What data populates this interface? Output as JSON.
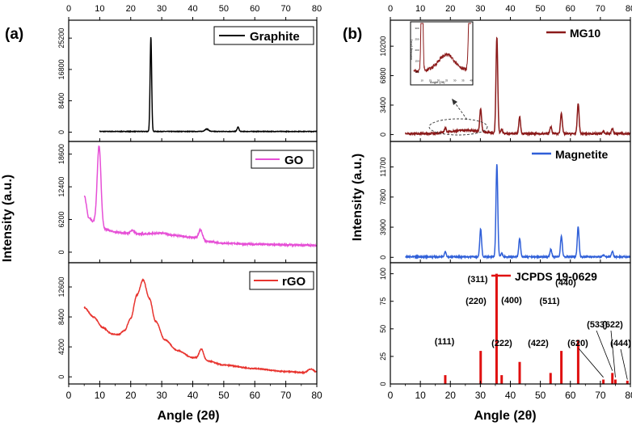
{
  "colors": {
    "graphite": "#000000",
    "go": "#e64fd6",
    "rgo": "#e8342f",
    "mg10": "#8b1a1a",
    "magnetite": "#2f5fd8",
    "jcpds": "#e01010",
    "frame": "#000000",
    "inset_bg": "#ffffff"
  },
  "chart_data": [
    {
      "panel": "a",
      "panel_label": "(a)",
      "type": "line",
      "xlabel": "Angle (2θ)",
      "ylabel": "Intensity (a.u.)",
      "xlim": [
        0,
        80
      ],
      "xticks": [
        "0",
        "10",
        "20",
        "30",
        "40",
        "50",
        "60",
        "70",
        "80"
      ],
      "subplots": [
        {
          "name": "Graphite",
          "legend": "Graphite",
          "color_key": "graphite",
          "ylim": [
            -2500,
            30000
          ],
          "yticks": [
            0,
            8400,
            16800,
            25200
          ],
          "ytick_labels": [
            "0",
            "8400",
            "16800",
            "25200"
          ],
          "x_start": 10,
          "baseline": 180,
          "noise": 70,
          "peaks": [
            {
              "x": 26.5,
              "h": 25300,
              "w": 0.25
            },
            {
              "x": 44.5,
              "h": 650,
              "w": 0.6
            },
            {
              "x": 54.6,
              "h": 1150,
              "w": 0.3
            }
          ]
        },
        {
          "name": "GO",
          "legend": "GO",
          "color_key": "go",
          "ylim": [
            -2000,
            21000
          ],
          "yticks": [
            0,
            6200,
            12400,
            18600
          ],
          "ytick_labels": [
            "0",
            "6200",
            "12400",
            "18600"
          ],
          "x_start": 5,
          "profile": [
            [
              5,
              10800
            ],
            [
              6.5,
              6500
            ],
            [
              8,
              5800
            ],
            [
              12,
              4300
            ],
            [
              15,
              3800
            ],
            [
              20,
              3500
            ],
            [
              25,
              3400
            ],
            [
              30,
              3300
            ],
            [
              35,
              3100
            ],
            [
              40,
              2800
            ],
            [
              42,
              2600
            ],
            [
              45,
              2000
            ],
            [
              50,
              1700
            ],
            [
              60,
              1500
            ],
            [
              70,
              1400
            ],
            [
              80,
              1300
            ]
          ],
          "noise": 130,
          "peaks": [
            {
              "x": 9.8,
              "h": 15000,
              "w": 0.6
            },
            {
              "x": 20.5,
              "h": 600,
              "w": 0.7
            },
            {
              "x": 42.5,
              "h": 1700,
              "w": 0.6
            },
            {
              "x": 29.5,
              "h": 300,
              "w": 2.5
            }
          ]
        },
        {
          "name": "rGO",
          "legend": "rGO",
          "color_key": "rgo",
          "ylim": [
            -1000,
            16000
          ],
          "yticks": [
            0,
            4200,
            8400,
            12600
          ],
          "ytick_labels": [
            "0",
            "4200",
            "8400",
            "12600"
          ],
          "x_start": 5,
          "profile": [
            [
              5,
              9700
            ],
            [
              8,
              8400
            ],
            [
              11,
              6900
            ],
            [
              14,
              6000
            ],
            [
              16,
              5900
            ],
            [
              18,
              6500
            ],
            [
              20,
              8200
            ],
            [
              22,
              11500
            ],
            [
              24,
              13600
            ],
            [
              26,
              11000
            ],
            [
              28,
              7800
            ],
            [
              31,
              5200
            ],
            [
              35,
              3700
            ],
            [
              40,
              2700
            ],
            [
              45,
              2200
            ],
            [
              50,
              1650
            ],
            [
              60,
              1150
            ],
            [
              70,
              750
            ],
            [
              76,
              600
            ],
            [
              78,
              1100
            ],
            [
              80,
              700
            ]
          ],
          "noise": 60,
          "peaks": [
            {
              "x": 42.8,
              "h": 1500,
              "w": 0.7
            }
          ]
        }
      ]
    },
    {
      "panel": "b",
      "panel_label": "(b)",
      "type": "line",
      "xlabel": "Angle (2θ)",
      "ylabel": "Intensity (a.u.)",
      "xlim": [
        0,
        80
      ],
      "xticks": [
        "0",
        "10",
        "20",
        "30",
        "40",
        "50",
        "60",
        "70",
        "80"
      ],
      "subplots": [
        {
          "name": "MG10",
          "legend": "MG10",
          "color_key": "mg10",
          "ylim": [
            -800,
            13200
          ],
          "yticks": [
            0,
            3400,
            6800,
            10200
          ],
          "ytick_labels": [
            "0",
            "3400",
            "6800",
            "10200"
          ],
          "x_start": 5,
          "baseline": 100,
          "noise": 90,
          "hump": {
            "x": 25,
            "h": 400,
            "w": 5
          },
          "peaks": [
            {
              "x": 18.3,
              "h": 500,
              "w": 0.3
            },
            {
              "x": 30.1,
              "h": 2700,
              "w": 0.3
            },
            {
              "x": 35.5,
              "h": 11100,
              "w": 0.3
            },
            {
              "x": 37.1,
              "h": 500,
              "w": 0.3
            },
            {
              "x": 43.1,
              "h": 1950,
              "w": 0.3
            },
            {
              "x": 53.5,
              "h": 800,
              "w": 0.3
            },
            {
              "x": 57.0,
              "h": 2400,
              "w": 0.3
            },
            {
              "x": 62.6,
              "h": 3500,
              "w": 0.3
            },
            {
              "x": 71.0,
              "h": 250,
              "w": 0.3
            },
            {
              "x": 74.0,
              "h": 600,
              "w": 0.3
            }
          ],
          "inset": {
            "xlabel": "Angle (2θ)",
            "ylabel": "Intensity (a.u.)",
            "xticks": [
              "10",
              "15",
              "20",
              "25",
              "30",
              "35",
              "40"
            ],
            "yticks": [
              "100",
              "150",
              "200",
              "250",
              "300"
            ],
            "xlim": [
              5,
              40
            ],
            "ylim": [
              0,
              1300
            ]
          }
        },
        {
          "name": "Magnetite",
          "legend": "Magnetite",
          "color_key": "magnetite",
          "ylim": [
            -700,
            15000
          ],
          "yticks": [
            0,
            3900,
            7800,
            11700
          ],
          "ytick_labels": [
            "0",
            "3900",
            "7800",
            "11700"
          ],
          "x_start": 5,
          "baseline": 60,
          "noise": 80,
          "peaks": [
            {
              "x": 18.3,
              "h": 700,
              "w": 0.3
            },
            {
              "x": 30.1,
              "h": 3600,
              "w": 0.3
            },
            {
              "x": 35.5,
              "h": 12000,
              "w": 0.3
            },
            {
              "x": 37.1,
              "h": 450,
              "w": 0.3
            },
            {
              "x": 43.1,
              "h": 2400,
              "w": 0.3
            },
            {
              "x": 53.5,
              "h": 1000,
              "w": 0.3
            },
            {
              "x": 57.0,
              "h": 2700,
              "w": 0.3
            },
            {
              "x": 62.6,
              "h": 3900,
              "w": 0.3
            },
            {
              "x": 71.0,
              "h": 250,
              "w": 0.3
            },
            {
              "x": 74.0,
              "h": 700,
              "w": 0.3
            }
          ]
        },
        {
          "name": "JCPDS 19-0629",
          "legend": "JCPDS 19-0629",
          "color_key": "jcpds",
          "type": "stick",
          "ylim": [
            0,
            110
          ],
          "yticks": [
            0,
            25,
            50,
            75,
            100
          ],
          "ytick_labels": [
            "0",
            "25",
            "50",
            "75",
            "100"
          ],
          "sticks": [
            {
              "x": 18.3,
              "y": 8,
              "label": "(111)"
            },
            {
              "x": 30.1,
              "y": 30,
              "label": "(220)"
            },
            {
              "x": 35.4,
              "y": 100,
              "label": "(311)"
            },
            {
              "x": 37.1,
              "y": 8,
              "label": "(222)"
            },
            {
              "x": 43.1,
              "y": 20,
              "label": "(400)"
            },
            {
              "x": 53.4,
              "y": 10,
              "label": "(422)"
            },
            {
              "x": 57.0,
              "y": 30,
              "label": "(511)"
            },
            {
              "x": 62.6,
              "y": 40,
              "label": "(440)"
            },
            {
              "x": 71.0,
              "y": 4,
              "label": "(620)"
            },
            {
              "x": 74.0,
              "y": 10,
              "label": "(533)"
            },
            {
              "x": 75.0,
              "y": 4,
              "label": "(622)"
            },
            {
              "x": 79.0,
              "y": 3,
              "label": "(444)"
            }
          ]
        }
      ]
    }
  ]
}
